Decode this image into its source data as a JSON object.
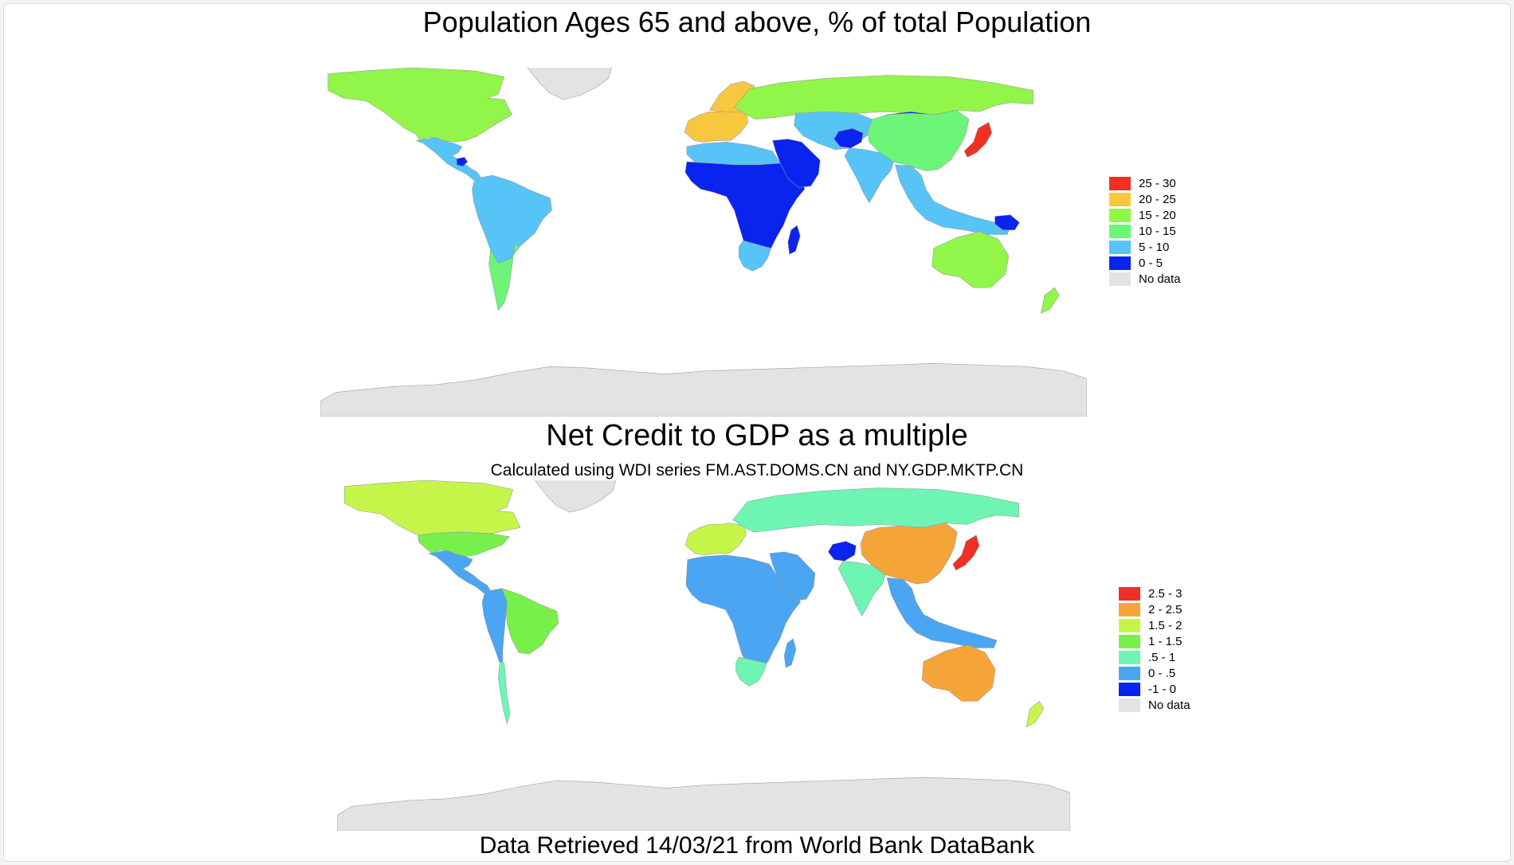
{
  "map1": {
    "title": "Population Ages 65 and above, % of total Population",
    "legend": [
      {
        "label": "25 - 30",
        "color": "#ee3124"
      },
      {
        "label": "20 - 25",
        "color": "#f7c73e"
      },
      {
        "label": "15 - 20",
        "color": "#92f54a"
      },
      {
        "label": "10 - 15",
        "color": "#6cf579"
      },
      {
        "label": "5 - 10",
        "color": "#56c4f7"
      },
      {
        "label": "0 - 5",
        "color": "#0a23ef"
      },
      {
        "label": "No data",
        "color": "#e3e3e3"
      }
    ],
    "regions": [
      {
        "name": "North America",
        "category": "15 - 20",
        "color": "#92f54a"
      },
      {
        "name": "Mexico & Central America",
        "category": "5 - 10",
        "color": "#56c4f7"
      },
      {
        "name": "Guatemala",
        "category": "0 - 5",
        "color": "#0a23ef"
      },
      {
        "name": "South America",
        "category": "5 - 10",
        "color": "#56c4f7"
      },
      {
        "name": "Chile & Argentina",
        "category": "10 - 15",
        "color": "#6cf579"
      },
      {
        "name": "Western Europe",
        "category": "20 - 25",
        "color": "#f7c73e"
      },
      {
        "name": "Scandinavia",
        "category": "20 - 25",
        "color": "#f7c73e"
      },
      {
        "name": "Russia",
        "category": "15 - 20",
        "color": "#92f54a"
      },
      {
        "name": "North Africa",
        "category": "5 - 10",
        "color": "#56c4f7"
      },
      {
        "name": "Sub-Saharan Africa",
        "category": "0 - 5",
        "color": "#0a23ef"
      },
      {
        "name": "Southern Africa",
        "category": "5 - 10",
        "color": "#56c4f7"
      },
      {
        "name": "Middle East",
        "category": "0 - 5",
        "color": "#0a23ef"
      },
      {
        "name": "Central Asia",
        "category": "5 - 10",
        "color": "#56c4f7"
      },
      {
        "name": "Afghanistan",
        "category": "0 - 5",
        "color": "#0a23ef"
      },
      {
        "name": "Mongolia",
        "category": "0 - 5",
        "color": "#0a23ef"
      },
      {
        "name": "China",
        "category": "10 - 15",
        "color": "#6cf579"
      },
      {
        "name": "India",
        "category": "5 - 10",
        "color": "#56c4f7"
      },
      {
        "name": "Southeast Asia",
        "category": "5 - 10",
        "color": "#56c4f7"
      },
      {
        "name": "Papua New Guinea",
        "category": "0 - 5",
        "color": "#0a23ef"
      },
      {
        "name": "Japan",
        "category": "25 - 30",
        "color": "#ee3124"
      },
      {
        "name": "Australia & New Zealand",
        "category": "15 - 20",
        "color": "#92f54a"
      },
      {
        "name": "Greenland",
        "category": "No data",
        "color": "#e3e3e3"
      },
      {
        "name": "Antarctica",
        "category": "No data",
        "color": "#e3e3e3"
      }
    ]
  },
  "map2": {
    "title": "Net Credit to GDP as a multiple",
    "subtitle": "Calculated using WDI series FM.AST.DOMS.CN and NY.GDP.MKTP.CN",
    "legend": [
      {
        "label": "2.5 - 3",
        "color": "#ee3124"
      },
      {
        "label": "2 - 2.5",
        "color": "#f5a43a"
      },
      {
        "label": "1.5 - 2",
        "color": "#c6f54a"
      },
      {
        "label": "1 - 1.5",
        "color": "#77f04a"
      },
      {
        "label": ".5 - 1",
        "color": "#6ef5b4"
      },
      {
        "label": "0 - .5",
        "color": "#4aa5f2"
      },
      {
        "label": "-1 - 0",
        "color": "#0a23ef"
      },
      {
        "label": "No data",
        "color": "#e3e3e3"
      }
    ],
    "regions": [
      {
        "name": "Canada & Alaska",
        "category": "1.5 - 2",
        "color": "#c6f54a"
      },
      {
        "name": "United States",
        "category": "1 - 1.5",
        "color": "#77f04a"
      },
      {
        "name": "Mexico & Central America",
        "category": "0 - .5",
        "color": "#4aa5f2"
      },
      {
        "name": "Brazil",
        "category": "1 - 1.5",
        "color": "#77f04a"
      },
      {
        "name": "Andean South America",
        "category": "0 - .5",
        "color": "#4aa5f2"
      },
      {
        "name": "Chile",
        "category": ".5 - 1",
        "color": "#6ef5b4"
      },
      {
        "name": "Western Europe",
        "category": "1.5 - 2",
        "color": "#c6f54a"
      },
      {
        "name": "Russia",
        "category": ".5 - 1",
        "color": "#6ef5b4"
      },
      {
        "name": "Africa",
        "category": "0 - .5",
        "color": "#4aa5f2"
      },
      {
        "name": "South Africa",
        "category": ".5 - 1",
        "color": "#6ef5b4"
      },
      {
        "name": "Middle East",
        "category": "0 - .5",
        "color": "#4aa5f2"
      },
      {
        "name": "Afghanistan",
        "category": "-1 - 0",
        "color": "#0a23ef"
      },
      {
        "name": "China",
        "category": "2 - 2.5",
        "color": "#f5a43a"
      },
      {
        "name": "India",
        "category": ".5 - 1",
        "color": "#6ef5b4"
      },
      {
        "name": "Southeast Asia",
        "category": "0 - .5",
        "color": "#4aa5f2"
      },
      {
        "name": "Japan",
        "category": "2.5 - 3",
        "color": "#ee3124"
      },
      {
        "name": "Australia",
        "category": "2 - 2.5",
        "color": "#f5a43a"
      },
      {
        "name": "New Zealand",
        "category": "1.5 - 2",
        "color": "#c6f54a"
      },
      {
        "name": "Greenland",
        "category": "No data",
        "color": "#e3e3e3"
      },
      {
        "name": "Antarctica",
        "category": "No data",
        "color": "#e3e3e3"
      }
    ]
  },
  "footer": "Data Retrieved 14/03/21 from World Bank DataBank"
}
